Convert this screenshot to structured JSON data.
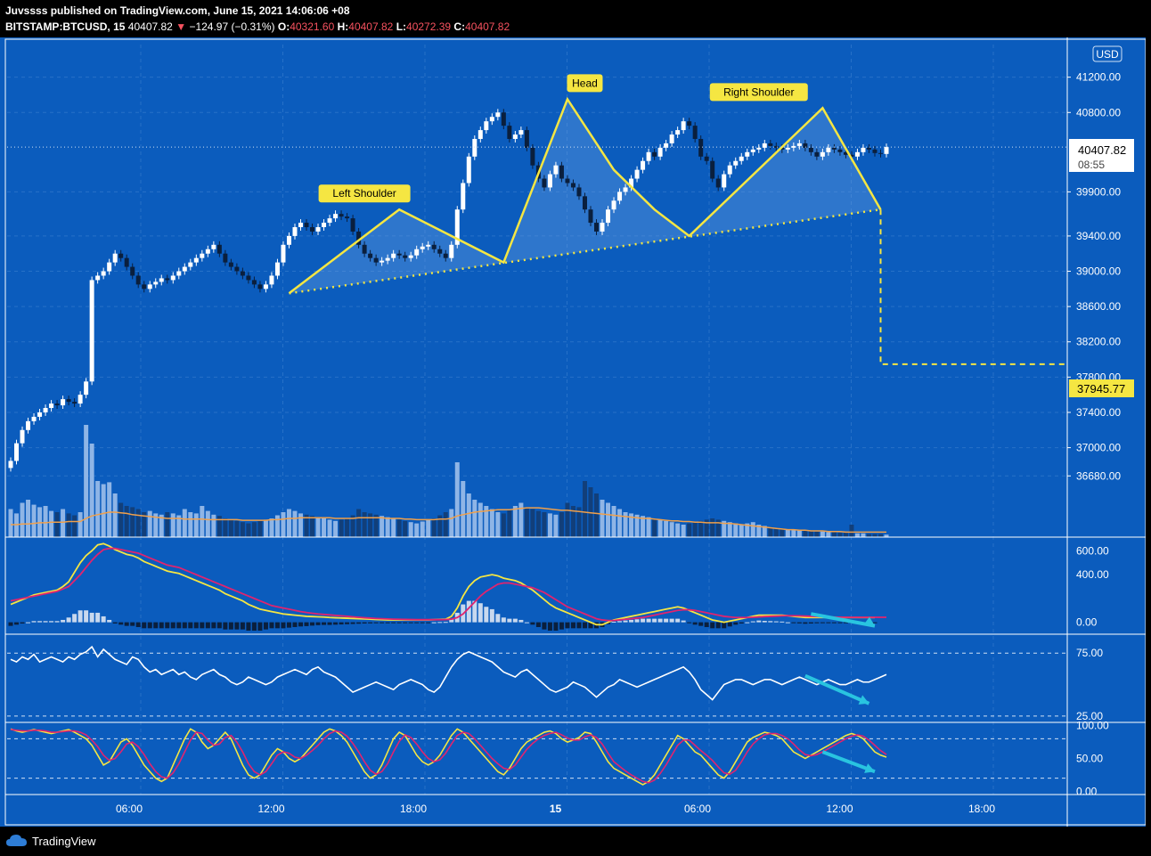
{
  "header": {
    "publisher": "Juvssss published on TradingView.com, June 15, 2021 14:06:06 +08",
    "symbol": "BITSTAMP:BTCUSD, 15",
    "price": "40407.82",
    "change": "−124.97 (−0.31%)",
    "o_label": "O:",
    "o": "40321.60",
    "h_label": "H:",
    "h": "40407.82",
    "l_label": "L:",
    "l": "40272.39",
    "c_label": "C:",
    "c": "40407.82"
  },
  "currency_label": "USD",
  "price_badge": {
    "price": "40407.82",
    "countdown": "08:55"
  },
  "target_badge": "37945.77",
  "colors": {
    "background": "#0b5cbd",
    "pattern_line": "#f5e642",
    "candle_up": "#ffffff",
    "candle_down": "#0a1f3d",
    "volume_ma": "#f0a04b",
    "macd_line": "#f5e642",
    "signal_line": "#e0246f",
    "arrow": "#29c4e0"
  },
  "footer": {
    "brand": "TradingView"
  },
  "chart_data": [
    {
      "type": "candlestick",
      "ylim": [
        36400,
        41550
      ],
      "yticks": [
        "41200.00",
        "40800.00",
        "39900.00",
        "39400.00",
        "39000.00",
        "38600.00",
        "38200.00",
        "37800.00",
        "37400.00",
        "37000.00",
        "36680.00"
      ],
      "ytick_values": [
        41200,
        40800,
        39900,
        39400,
        39000,
        38600,
        38200,
        37800,
        37400,
        37000,
        36680
      ],
      "xticks": [
        "06:00",
        "12:00",
        "18:00",
        "15",
        "06:00",
        "12:00",
        "18:00"
      ],
      "candle_start": "2021-06-14 00:00",
      "candle_interval_minutes": 15,
      "candle_count": 152,
      "closes": [
        36850,
        37050,
        37200,
        37300,
        37350,
        37400,
        37450,
        37500,
        37480,
        37550,
        37520,
        37500,
        37600,
        37750,
        38900,
        38950,
        39000,
        39100,
        39200,
        39150,
        39050,
        38950,
        38850,
        38800,
        38850,
        38880,
        38920,
        38900,
        38950,
        39000,
        39050,
        39100,
        39150,
        39200,
        39250,
        39300,
        39200,
        39100,
        39050,
        39000,
        38950,
        38900,
        38850,
        38800,
        38850,
        38950,
        39100,
        39300,
        39400,
        39500,
        39550,
        39500,
        39450,
        39500,
        39550,
        39600,
        39650,
        39620,
        39600,
        39450,
        39300,
        39200,
        39150,
        39100,
        39120,
        39150,
        39200,
        39180,
        39150,
        39180,
        39250,
        39280,
        39300,
        39250,
        39200,
        39150,
        39300,
        39700,
        40000,
        40300,
        40500,
        40600,
        40700,
        40750,
        40800,
        40650,
        40500,
        40550,
        40600,
        40400,
        40200,
        40050,
        39950,
        40100,
        40200,
        40050,
        40000,
        39950,
        39850,
        39700,
        39550,
        39450,
        39550,
        39700,
        39800,
        39900,
        39950,
        40050,
        40150,
        40250,
        40350,
        40300,
        40400,
        40450,
        40550,
        40600,
        40700,
        40650,
        40500,
        40300,
        40250,
        40050,
        39950,
        40100,
        40200,
        40250,
        40300,
        40350,
        40380,
        40400,
        40450,
        40420,
        40400,
        40380,
        40400,
        40420,
        40450,
        40400,
        40350,
        40300,
        40350,
        40400,
        40380,
        40350,
        40320,
        40300,
        40350,
        40400,
        40380,
        40340,
        40330,
        40408
      ],
      "volumes": [
        45,
        38,
        55,
        60,
        52,
        48,
        50,
        42,
        40,
        45,
        38,
        35,
        40,
        180,
        150,
        90,
        85,
        88,
        70,
        55,
        50,
        48,
        45,
        40,
        42,
        38,
        36,
        40,
        38,
        35,
        45,
        40,
        38,
        50,
        42,
        36,
        34,
        30,
        28,
        26,
        24,
        22,
        24,
        26,
        28,
        30,
        35,
        40,
        45,
        42,
        38,
        36,
        34,
        32,
        30,
        28,
        26,
        28,
        30,
        35,
        45,
        40,
        38,
        36,
        34,
        32,
        30,
        28,
        26,
        24,
        22,
        25,
        28,
        30,
        35,
        40,
        45,
        120,
        90,
        70,
        60,
        55,
        50,
        45,
        40,
        38,
        45,
        50,
        55,
        48,
        45,
        42,
        40,
        38,
        36,
        40,
        55,
        50,
        48,
        90,
        80,
        70,
        60,
        55,
        50,
        45,
        40,
        38,
        36,
        34,
        32,
        30,
        28,
        26,
        24,
        22,
        20,
        22,
        24,
        26,
        28,
        30,
        28,
        26,
        24,
        22,
        20,
        22,
        24,
        20,
        18,
        16,
        15,
        14,
        12,
        12,
        11,
        10,
        10,
        9,
        9,
        8,
        8,
        7,
        7,
        20,
        6,
        6,
        5,
        5,
        5,
        4
      ],
      "volume_ma": [
        20,
        20,
        21,
        21,
        22,
        23,
        23,
        24,
        24,
        24,
        25,
        25,
        25,
        30,
        34,
        36,
        38,
        40,
        40,
        39,
        38,
        36,
        35,
        34,
        33,
        32,
        31,
        30,
        30,
        30,
        29,
        29,
        29,
        29,
        28,
        28,
        28,
        28,
        28,
        28,
        27,
        27,
        27,
        27,
        27,
        28,
        28,
        29,
        30,
        30,
        31,
        31,
        31,
        31,
        31,
        31,
        30,
        30,
        30,
        30,
        31,
        31,
        31,
        31,
        31,
        30,
        30,
        30,
        29,
        29,
        28,
        28,
        28,
        28,
        29,
        29,
        30,
        34,
        36,
        38,
        40,
        41,
        42,
        43,
        44,
        44,
        44,
        45,
        46,
        47,
        47,
        47,
        46,
        45,
        44,
        43,
        43,
        42,
        41,
        40,
        39,
        38,
        37,
        36,
        35,
        34,
        33,
        32,
        31,
        30,
        30,
        29,
        28,
        27,
        26,
        26,
        25,
        25,
        24,
        24,
        23,
        23,
        23,
        22,
        22,
        21,
        20,
        19,
        18,
        17,
        16,
        15,
        14,
        13,
        12,
        12,
        11,
        11,
        10,
        10,
        10,
        9,
        9,
        9,
        8,
        8,
        8,
        8,
        8,
        8,
        8,
        8
      ],
      "annotations": [
        {
          "text": "Left Shoulder",
          "x": "2021-06-14 15:15",
          "y": 39700
        },
        {
          "text": "Head",
          "x": "2021-06-15 00:45",
          "y": 40950
        },
        {
          "text": "Right Shoulder",
          "x": "2021-06-15 08:15",
          "y": 40850
        }
      ],
      "pattern_points": [
        [
          48,
          38750
        ],
        [
          67,
          39700
        ],
        [
          85,
          39100
        ],
        [
          96,
          40950
        ],
        [
          104,
          40150
        ],
        [
          111,
          39700
        ],
        [
          117,
          39400
        ],
        [
          140,
          40850
        ],
        [
          150,
          39700
        ]
      ],
      "neckline": [
        [
          48,
          38750
        ],
        [
          150,
          39700
        ]
      ],
      "target": 37945.77,
      "target_start_index": 150
    },
    {
      "type": "macd",
      "yticks": [
        "600.00",
        "400.00",
        "0.00"
      ],
      "ytick_values": [
        600,
        400,
        0
      ],
      "ylim": [
        -100,
        700
      ],
      "macd": [
        150,
        170,
        190,
        210,
        230,
        240,
        250,
        260,
        270,
        300,
        340,
        420,
        500,
        560,
        600,
        650,
        660,
        640,
        610,
        590,
        570,
        560,
        540,
        510,
        490,
        470,
        450,
        430,
        420,
        410,
        390,
        370,
        350,
        330,
        310,
        290,
        270,
        240,
        220,
        200,
        180,
        150,
        130,
        110,
        100,
        90,
        80,
        70,
        65,
        60,
        55,
        50,
        48,
        46,
        44,
        40,
        38,
        36,
        34,
        32,
        30,
        28,
        26,
        24,
        22,
        20,
        20,
        20,
        20,
        20,
        20,
        20,
        20,
        22,
        24,
        26,
        50,
        120,
        220,
        300,
        350,
        380,
        390,
        400,
        390,
        370,
        360,
        350,
        330,
        300,
        270,
        230,
        190,
        150,
        120,
        100,
        80,
        60,
        40,
        20,
        0,
        -20,
        -20,
        0,
        20,
        30,
        40,
        50,
        60,
        70,
        80,
        90,
        100,
        110,
        120,
        130,
        120,
        100,
        80,
        60,
        40,
        20,
        10,
        0,
        10,
        20,
        30,
        40,
        50,
        60,
        60,
        60,
        60,
        60,
        55,
        50,
        45,
        40,
        40,
        40,
        40,
        40,
        40,
        40,
        40,
        40,
        40,
        40,
        40,
        40
      ],
      "signal": [
        180,
        190,
        200,
        210,
        220,
        230,
        240,
        250,
        260,
        280,
        300,
        350,
        400,
        460,
        520,
        570,
        610,
        620,
        620,
        610,
        600,
        590,
        580,
        560,
        540,
        520,
        500,
        480,
        470,
        460,
        440,
        420,
        400,
        380,
        360,
        340,
        320,
        300,
        280,
        260,
        240,
        220,
        200,
        180,
        160,
        140,
        130,
        120,
        110,
        100,
        90,
        82,
        76,
        70,
        66,
        62,
        58,
        54,
        50,
        46,
        42,
        38,
        35,
        32,
        30,
        28,
        26,
        25,
        24,
        23,
        22,
        22,
        22,
        22,
        22,
        23,
        26,
        40,
        70,
        120,
        170,
        220,
        260,
        290,
        320,
        330,
        330,
        320,
        310,
        300,
        290,
        270,
        250,
        220,
        190,
        160,
        130,
        110,
        90,
        70,
        50,
        30,
        20,
        15,
        15,
        20,
        25,
        30,
        35,
        40,
        50,
        60,
        70,
        80,
        90,
        100,
        105,
        105,
        100,
        90,
        80,
        70,
        60,
        50,
        45,
        40,
        40,
        40,
        42,
        45,
        48,
        50,
        52,
        54,
        55,
        55,
        54,
        52,
        50,
        48,
        46,
        45,
        44,
        43,
        42,
        42,
        42,
        42,
        42,
        42,
        42,
        42
      ]
    },
    {
      "type": "rsi",
      "yticks": [
        "75.00",
        "25.00"
      ],
      "ytick_values": [
        75,
        25
      ],
      "ylim": [
        20,
        90
      ],
      "values": [
        70,
        68,
        72,
        70,
        74,
        68,
        70,
        72,
        70,
        68,
        72,
        70,
        74,
        76,
        80,
        72,
        78,
        74,
        70,
        68,
        66,
        72,
        70,
        64,
        60,
        62,
        58,
        60,
        62,
        58,
        60,
        56,
        54,
        58,
        60,
        62,
        58,
        56,
        52,
        50,
        52,
        56,
        54,
        52,
        50,
        52,
        56,
        58,
        60,
        62,
        60,
        58,
        62,
        64,
        60,
        58,
        56,
        52,
        48,
        44,
        46,
        48,
        50,
        52,
        50,
        48,
        46,
        50,
        52,
        54,
        52,
        50,
        46,
        44,
        48,
        56,
        64,
        70,
        74,
        76,
        74,
        72,
        70,
        68,
        64,
        60,
        58,
        56,
        60,
        62,
        58,
        54,
        50,
        46,
        44,
        46,
        48,
        52,
        50,
        48,
        44,
        40,
        44,
        48,
        50,
        54,
        52,
        50,
        48,
        50,
        52,
        54,
        56,
        58,
        60,
        62,
        64,
        60,
        54,
        46,
        42,
        38,
        44,
        50,
        52,
        54,
        54,
        52,
        50,
        52,
        54,
        54,
        52,
        50,
        52,
        54,
        56,
        54,
        52,
        50,
        52,
        54,
        52,
        50,
        50,
        52,
        54,
        52,
        52,
        54,
        56,
        58
      ],
      "arrow": {
        "from": [
          137,
          57
        ],
        "to": [
          148,
          35
        ]
      }
    },
    {
      "type": "stochastic",
      "yticks": [
        "100.00",
        "50.00",
        "0.00"
      ],
      "ytick_values": [
        100,
        50,
        0
      ],
      "ylim": [
        -5,
        105
      ],
      "k": [
        95,
        92,
        90,
        92,
        94,
        92,
        90,
        88,
        90,
        92,
        94,
        90,
        85,
        80,
        70,
        55,
        40,
        45,
        60,
        75,
        80,
        70,
        55,
        40,
        30,
        20,
        15,
        20,
        40,
        60,
        80,
        95,
        90,
        75,
        65,
        70,
        80,
        90,
        80,
        60,
        40,
        25,
        20,
        25,
        40,
        55,
        65,
        60,
        50,
        45,
        50,
        60,
        70,
        80,
        90,
        95,
        92,
        85,
        75,
        60,
        45,
        30,
        20,
        25,
        40,
        60,
        80,
        90,
        85,
        70,
        55,
        45,
        40,
        45,
        55,
        70,
        85,
        95,
        90,
        80,
        70,
        60,
        50,
        40,
        30,
        25,
        35,
        50,
        65,
        75,
        80,
        85,
        90,
        92,
        88,
        80,
        75,
        78,
        82,
        90,
        88,
        75,
        60,
        45,
        35,
        30,
        25,
        20,
        15,
        10,
        15,
        25,
        40,
        55,
        70,
        85,
        80,
        70,
        60,
        55,
        45,
        35,
        25,
        20,
        30,
        45,
        60,
        75,
        82,
        86,
        90,
        88,
        85,
        80,
        70,
        60,
        55,
        50,
        55,
        60,
        65,
        70,
        75,
        80,
        85,
        88,
        85,
        80,
        70,
        60,
        55,
        52
      ],
      "d": [
        94,
        93,
        92,
        92,
        93,
        93,
        92,
        90,
        90,
        91,
        92,
        92,
        90,
        86,
        78,
        68,
        55,
        47,
        50,
        60,
        72,
        75,
        68,
        56,
        42,
        30,
        22,
        20,
        28,
        42,
        60,
        78,
        90,
        88,
        78,
        70,
        72,
        82,
        85,
        75,
        60,
        42,
        30,
        25,
        30,
        42,
        55,
        60,
        58,
        52,
        50,
        55,
        62,
        70,
        80,
        88,
        92,
        90,
        84,
        73,
        60,
        45,
        32,
        26,
        30,
        42,
        60,
        76,
        86,
        82,
        72,
        60,
        50,
        45,
        48,
        58,
        72,
        85,
        90,
        88,
        80,
        70,
        60,
        50,
        42,
        35,
        33,
        40,
        52,
        64,
        73,
        80,
        85,
        88,
        90,
        86,
        81,
        78,
        78,
        83,
        86,
        82,
        72,
        58,
        45,
        38,
        31,
        25,
        20,
        15,
        13,
        17,
        27,
        40,
        55,
        70,
        78,
        78,
        70,
        62,
        55,
        47,
        37,
        28,
        26,
        32,
        45,
        60,
        72,
        80,
        86,
        88,
        88,
        85,
        80,
        72,
        63,
        56,
        54,
        56,
        60,
        65,
        70,
        75,
        80,
        84,
        86,
        84,
        78,
        70,
        62,
        56
      ],
      "arrow": {
        "from": [
          140,
          60
        ],
        "to": [
          149,
          30
        ]
      }
    }
  ]
}
